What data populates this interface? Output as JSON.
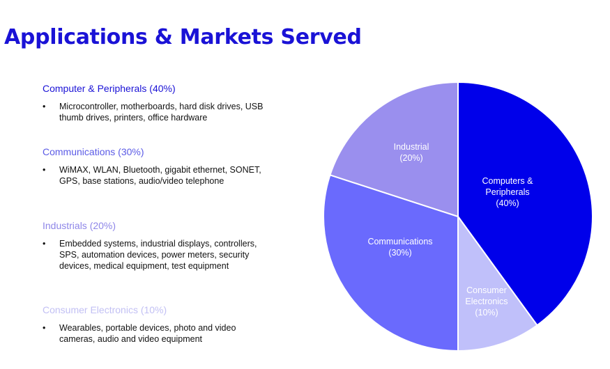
{
  "title": "Applications & Markets Served",
  "sections": [
    {
      "heading": "Computer & Peripherals (40%)",
      "color": "#1a12d6",
      "bullet": "•",
      "text": "Microcontroller, motherboards, hard disk drives, USB thumb drives, printers, office hardware"
    },
    {
      "heading": "Communications (30%)",
      "color": "#5b5be6",
      "bullet": "•",
      "text": "WiMAX, WLAN, Bluetooth, gigabit ethernet, SONET, GPS, base stations, audio/video telephone"
    },
    {
      "heading": "Industrials (20%)",
      "color": "#8e86e8",
      "bullet": "•",
      "text": "Embedded systems, industrial displays, controllers, SPS, automation devices, power meters, security devices, medical equipment, test equipment"
    },
    {
      "heading": "Consumer Electronics (10%)",
      "color": "#c2c0f4",
      "bullet": "•",
      "text": "Wearables, portable devices, photo and video cameras, audio and video equipment"
    }
  ],
  "chart_data": {
    "type": "pie",
    "start": "12 o'clock",
    "direction": "clockwise",
    "slices": [
      {
        "label": [
          "Computers &",
          "Peripherals",
          "(40%)"
        ],
        "value": 40,
        "color": "#0000ea",
        "text_color": "#ffffff"
      },
      {
        "label": [
          "Consumer",
          "Electronics",
          "(10%)"
        ],
        "value": 10,
        "color": "#c0c0fa",
        "text_color": "#ffffff"
      },
      {
        "label": [
          "Communications",
          "(30%)"
        ],
        "value": 30,
        "color": "#6a6afd",
        "text_color": "#ffffff"
      },
      {
        "label": [
          "Industrial",
          "(20%)"
        ],
        "value": 20,
        "color": "#9a8fee",
        "text_color": "#ffffff"
      }
    ]
  }
}
